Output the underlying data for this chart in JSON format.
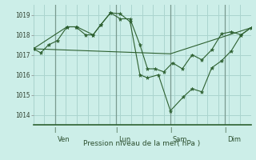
{
  "background_color": "#cceee8",
  "grid_color": "#aad4ce",
  "line_color": "#2d6030",
  "ylim": [
    1013.5,
    1019.5
  ],
  "yticks": [
    1014,
    1015,
    1016,
    1017,
    1018,
    1019
  ],
  "xlabel": "Pression niveau de la mer( hPa )",
  "day_labels": [
    "Ven",
    "Lun",
    "Sam",
    "Dim"
  ],
  "xlim": [
    0,
    10.0
  ],
  "day_vline_x": [
    1.0,
    3.8,
    6.3,
    8.8
  ],
  "series1_x": [
    0.0,
    0.35,
    0.7,
    1.1,
    1.55,
    1.95,
    2.4,
    2.75,
    3.1,
    3.55,
    4.0,
    4.45,
    4.9,
    5.25,
    5.6,
    6.0,
    6.4,
    6.85,
    7.3,
    7.75,
    8.2,
    8.65,
    9.1,
    9.55,
    10.0
  ],
  "series1_y": [
    1017.3,
    1017.1,
    1017.5,
    1017.7,
    1018.4,
    1018.4,
    1018.0,
    1018.0,
    1018.5,
    1019.1,
    1018.8,
    1018.8,
    1017.5,
    1016.3,
    1016.3,
    1016.15,
    1016.6,
    1016.3,
    1017.0,
    1016.75,
    1017.25,
    1018.05,
    1018.15,
    1018.0,
    1018.35
  ],
  "series2_x": [
    0.0,
    1.55,
    2.0,
    2.75,
    3.1,
    3.55,
    4.0,
    4.45,
    4.9,
    5.25,
    5.75,
    6.3,
    6.9,
    7.3,
    7.75,
    8.2,
    8.65,
    9.1,
    9.55,
    10.0
  ],
  "series2_y": [
    1017.3,
    1018.4,
    1018.4,
    1018.0,
    1018.5,
    1019.1,
    1019.05,
    1018.65,
    1016.0,
    1015.85,
    1016.0,
    1014.2,
    1014.9,
    1015.3,
    1015.15,
    1016.35,
    1016.7,
    1017.2,
    1018.0,
    1018.35
  ],
  "series3_x": [
    0.0,
    6.3,
    10.0
  ],
  "series3_y": [
    1017.3,
    1017.05,
    1018.35
  ]
}
